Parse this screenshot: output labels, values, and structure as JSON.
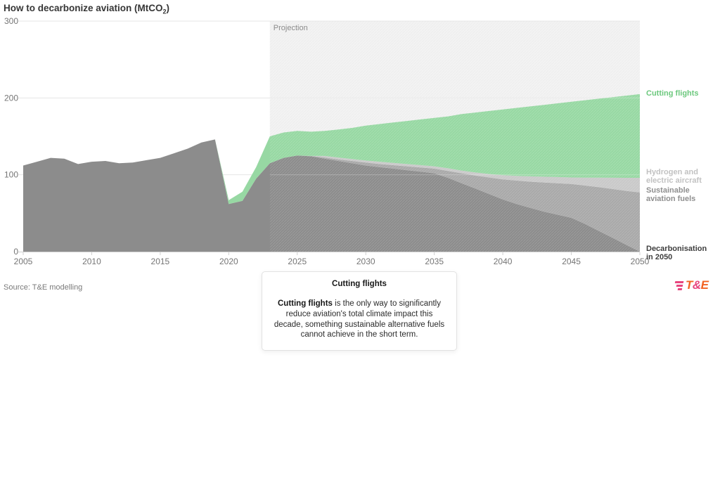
{
  "title": {
    "prefix": "How to decarbonize aviation (MtCO",
    "subscript": "2",
    "suffix": ")"
  },
  "projection_label": "Projection",
  "source": "Source: T&E modelling",
  "logo": {
    "t": "T",
    "amp": "&",
    "e": "E"
  },
  "legend": {
    "cutting": {
      "line1": "Cutting flights",
      "line2": "",
      "color": "#6cc87d"
    },
    "hydrogen": {
      "line1": "Hydrogen and",
      "line2": "electric aircraft",
      "color": "#c2c2c2"
    },
    "saf": {
      "line1": "Sustainable",
      "line2": "aviation fuels",
      "color": "#8f8f8f"
    },
    "decarb": {
      "line1": "Decarbonisation",
      "line2": "in 2050",
      "color": "#3e3e3e"
    }
  },
  "tooltip": {
    "title": "Cutting flights",
    "body_bold": "Cutting flights",
    "body_rest": " is the only way to significantly reduce aviation's total climate impact this decade, something sustainable alternative fuels cannot achieve in the short term."
  },
  "chart_data": {
    "type": "area",
    "title": "How to decarbonize aviation (MtCO2)",
    "stacking": "boundaries are cumulative tops, MtCO2",
    "x": [
      2005,
      2006,
      2007,
      2008,
      2009,
      2010,
      2011,
      2012,
      2013,
      2014,
      2015,
      2016,
      2017,
      2018,
      2019,
      2020,
      2021,
      2022,
      2023,
      2024,
      2025,
      2026,
      2027,
      2028,
      2029,
      2030,
      2031,
      2032,
      2033,
      2034,
      2035,
      2036,
      2037,
      2038,
      2039,
      2040,
      2041,
      2042,
      2043,
      2044,
      2045,
      2046,
      2047,
      2048,
      2049,
      2050
    ],
    "series": [
      {
        "name": "Decarbonisation in 2050",
        "color": "#8c8c8c",
        "values": [
          112,
          117,
          122,
          121,
          114,
          117,
          118,
          115,
          116,
          119,
          122,
          128,
          134,
          142,
          146,
          62,
          66,
          95,
          115,
          122,
          125,
          124,
          121,
          118,
          115,
          112,
          110,
          108,
          106,
          104,
          102,
          96,
          89,
          82,
          75,
          68,
          62,
          57,
          52,
          48,
          44,
          36,
          27,
          18,
          9,
          0
        ]
      },
      {
        "name": "Sustainable aviation fuels",
        "color": "#a9a9a9",
        "values": [
          112,
          117,
          122,
          121,
          114,
          117,
          118,
          115,
          116,
          119,
          122,
          128,
          134,
          142,
          146,
          62,
          66,
          95,
          115,
          122,
          125,
          124.5,
          122.5,
          120,
          118,
          116,
          114,
          112.5,
          111,
          109.5,
          108,
          105,
          102,
          99,
          96.5,
          94,
          92.5,
          91,
          90,
          89,
          88,
          86,
          84,
          81.5,
          79,
          77
        ]
      },
      {
        "name": "Hydrogen and electric aircraft",
        "color": "#c9c9c9",
        "values": [
          112,
          117,
          122,
          121,
          114,
          117,
          118,
          115,
          116,
          119,
          122,
          128,
          134,
          142,
          146,
          62,
          66,
          95,
          115,
          122,
          125,
          124.5,
          124.5,
          122.5,
          120.5,
          118.5,
          117,
          115.5,
          114,
          112.5,
          111,
          108.5,
          105.5,
          103,
          101,
          99.5,
          98.5,
          98,
          97.5,
          97,
          96.5,
          96.3,
          96.2,
          96.1,
          96,
          96
        ]
      },
      {
        "name": "Cutting flights",
        "color": "#97d8a3",
        "values": [
          112,
          117,
          122,
          121,
          114,
          117,
          118,
          115,
          116,
          119,
          122,
          128,
          134,
          142,
          146,
          67,
          78,
          110,
          150,
          155,
          157,
          156,
          157,
          159,
          161,
          164,
          166,
          168,
          170,
          172,
          174,
          176,
          179,
          181,
          183,
          185,
          187,
          189,
          191,
          193,
          195,
          197,
          199,
          201,
          203,
          205
        ]
      }
    ],
    "ylim": [
      0,
      300
    ],
    "yticks": [
      0,
      100,
      200,
      300
    ],
    "xticks": [
      2005,
      2010,
      2015,
      2020,
      2025,
      2030,
      2035,
      2040,
      2045,
      2050
    ],
    "projection_start": 2023,
    "grid": true,
    "legend_position": "right",
    "colors": {
      "projection_bg": "#f3f3f3",
      "gridline": "#e4e4e4",
      "axis_text": "#757575",
      "projection_text": "#8b8b8b"
    }
  }
}
